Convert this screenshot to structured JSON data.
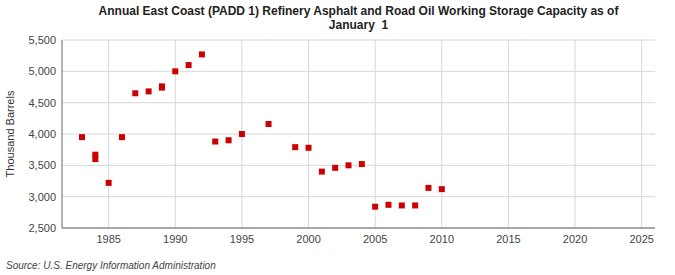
{
  "chart_data": {
    "type": "scatter",
    "title": "Annual East Coast (PADD 1) Refinery Asphalt and Road Oil Working Storage Capacity as of\nJanuary  1",
    "y_label": "Thousand Barrels",
    "source": "Source: U.S. Energy Information Administration",
    "color": "#cc0000",
    "marker": "square",
    "grid": true,
    "xlim": [
      1981.5,
      2026
    ],
    "ylim": [
      2500,
      5500
    ],
    "xticks": [
      1985,
      1990,
      1995,
      2000,
      2005,
      2010,
      2015,
      2020,
      2025
    ],
    "yticks": [
      {
        "value": 2500,
        "label": "2,500"
      },
      {
        "value": 3000,
        "label": "3,000"
      },
      {
        "value": 3500,
        "label": "3,500"
      },
      {
        "value": 4000,
        "label": "4,000"
      },
      {
        "value": 4500,
        "label": "4,500"
      },
      {
        "value": 5000,
        "label": "5,000"
      },
      {
        "value": 5500,
        "label": "5,500"
      }
    ],
    "x": [
      1983,
      1984,
      1984,
      1985,
      1986,
      1987,
      1988,
      1989,
      1989,
      1990,
      1991,
      1992,
      1993,
      1994,
      1995,
      1997,
      1999,
      2000,
      2001,
      2002,
      2003,
      2004,
      2005,
      2006,
      2007,
      2008,
      2009,
      2010
    ],
    "values": [
      3950,
      3600,
      3670,
      3220,
      3950,
      4650,
      4680,
      4740,
      4760,
      5000,
      5100,
      5270,
      3880,
      3900,
      4000,
      4160,
      3790,
      3780,
      3400,
      3460,
      3500,
      3520,
      2840,
      2870,
      2860,
      2860,
      3140,
      3120
    ]
  }
}
